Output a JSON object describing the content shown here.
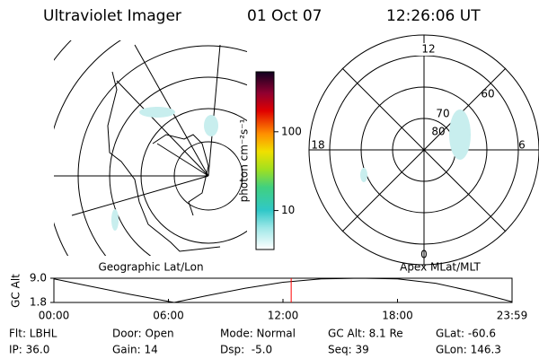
{
  "header": {
    "instrument": "Ultraviolet Imager",
    "date": "01 Oct 07",
    "time": "12:26:06 UT"
  },
  "colorbar": {
    "label": "photon cm⁻²s⁻¹",
    "lim": [
      3.2,
      577
    ],
    "ticks": [
      10,
      100
    ],
    "log": true
  },
  "left_panel": {
    "caption": "Geographic Lat/Lon"
  },
  "right_panel": {
    "caption": "Apex MLat/MLT",
    "mlt_labels": [
      "12",
      "6",
      "0",
      "18"
    ],
    "lat_labels": [
      "80",
      "70",
      "60"
    ]
  },
  "chart_data": {
    "type": "line",
    "ylabel": "GC Alt",
    "x": [
      0,
      2,
      4,
      6.3,
      8,
      10,
      12,
      14,
      16,
      18,
      20,
      22,
      24
    ],
    "values": [
      8.8,
      6.5,
      4.2,
      1.8,
      3.8,
      6.0,
      7.8,
      8.8,
      9.0,
      8.8,
      7.5,
      5.0,
      2.0
    ],
    "xlim": [
      0,
      24
    ],
    "ylim": [
      1.8,
      9.0
    ],
    "yticks": [
      1.8,
      {
        "value": 9,
        "label": "9.0"
      }
    ],
    "xticks": [
      {
        "value": 0,
        "label": "00:00"
      },
      {
        "value": 6,
        "label": "06:00"
      },
      {
        "value": 12,
        "label": "12:00"
      },
      {
        "value": 18,
        "label": "18:00"
      },
      {
        "value": 24,
        "label": "23:59"
      }
    ],
    "marker_x": 12.43,
    "color": "#000000",
    "marker_color": "#ff0000"
  },
  "footer": {
    "rows": [
      [
        "Flt: LBHL",
        "Door: Open",
        "Mode: Normal",
        "GC Alt: 8.1 Re",
        "GLat: -60.6"
      ],
      [
        "IP: 36.0",
        "Gain: 14",
        "Dsp:  -5.0",
        "Seq: 39",
        "GLon: 146.3"
      ]
    ]
  }
}
